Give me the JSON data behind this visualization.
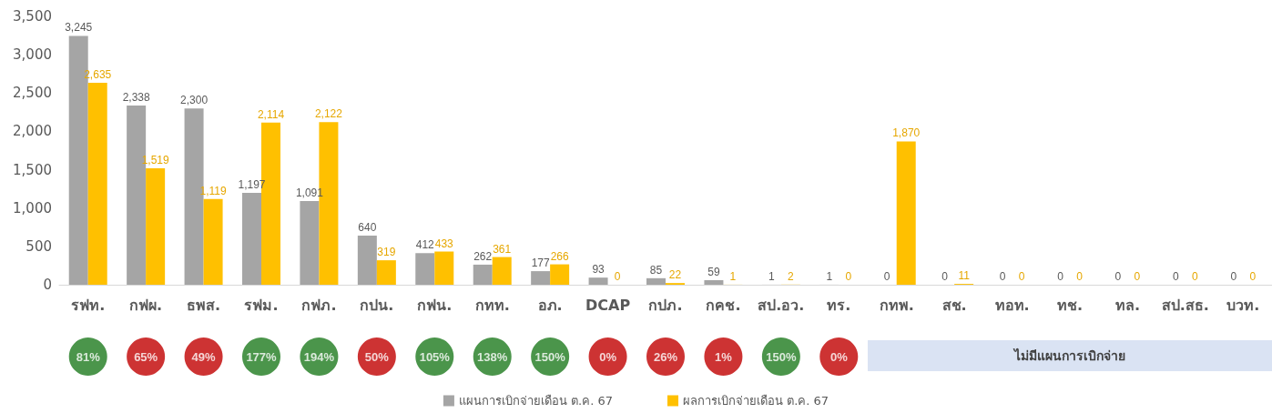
{
  "chart_data": [
    {
      "type": "bar",
      "categories": [
        "รฟท.",
        "กฟผ.",
        "ธพส.",
        "รฟม.",
        "กฟภ.",
        "กปน.",
        "กฟน.",
        "กทท.",
        "อภ.",
        "DCAP",
        "กปภ.",
        "กคช.",
        "สป.อว.",
        "ทร.",
        "กทพ.",
        "สช.",
        "ทอท.",
        "ทช.",
        "ทล.",
        "สป.สธ.",
        "บวท."
      ],
      "series": [
        {
          "name": "แผนการเบิกจ่ายเดือน ต.ค. 67",
          "color": "#a5a5a5",
          "values": [
            3245,
            2338,
            2300,
            1197,
            1091,
            640,
            412,
            262,
            177,
            93,
            85,
            59,
            1,
            1,
            0,
            0,
            0,
            0,
            0,
            0,
            0
          ],
          "value_labels": [
            "3,245",
            "2,338",
            "2,300",
            "1,197",
            "1,091",
            "640",
            "412",
            "262",
            "177",
            "93",
            "85",
            "59",
            "1",
            "1",
            "0",
            "0",
            "0",
            "0",
            "0",
            "0",
            "0"
          ]
        },
        {
          "name": "ผลการเบิกจ่ายเดือน ต.ค. 67",
          "color": "#ffc000",
          "values": [
            2635,
            1519,
            1119,
            2114,
            2122,
            319,
            433,
            361,
            266,
            0,
            22,
            1,
            2,
            0,
            1870,
            11,
            0,
            0,
            0,
            0,
            0
          ],
          "value_labels": [
            "2,635",
            "1,519",
            "1,119",
            "2,114",
            "2,122",
            "319",
            "433",
            "361",
            "266",
            "0",
            "22",
            "1",
            "2",
            "0",
            "1,870",
            "11",
            "0",
            "0",
            "0",
            "0",
            "0"
          ]
        }
      ],
      "ylim": [
        0,
        3500
      ],
      "yticks": [
        {
          "value": 0,
          "label": "0"
        },
        {
          "value": 500,
          "label": "500"
        },
        {
          "value": 1000,
          "label": "1,000"
        },
        {
          "value": 1500,
          "label": "1,500"
        },
        {
          "value": 2000,
          "label": "2,000"
        },
        {
          "value": 2500,
          "label": "2,500"
        },
        {
          "value": 3000,
          "label": "3,000"
        },
        {
          "value": 3500,
          "label": "3,500"
        }
      ],
      "grid": false,
      "legend": "bottom"
    },
    {
      "type": "other",
      "categories": [
        "81%",
        "65%",
        "49%",
        "177%",
        "194%",
        "50%",
        "105%",
        "138%",
        "150%",
        "0%",
        "26%",
        "1%",
        "150%",
        "0%",
        null,
        null,
        null,
        null,
        null,
        null,
        null
      ],
      "colors": [
        "#1e7b1e",
        "#c00000",
        "#c00000",
        "#1e7b1e",
        "#1e7b1e",
        "#c00000",
        "#1e7b1e",
        "#1e7b1e",
        "#1e7b1e",
        "#c00000",
        "#c00000",
        "#c00000",
        "#1e7b1e",
        "#c00000",
        null,
        null,
        null,
        null,
        null,
        null,
        null
      ],
      "annotations": [
        "ไม่มีแผนการเบิกจ่าย"
      ]
    }
  ]
}
